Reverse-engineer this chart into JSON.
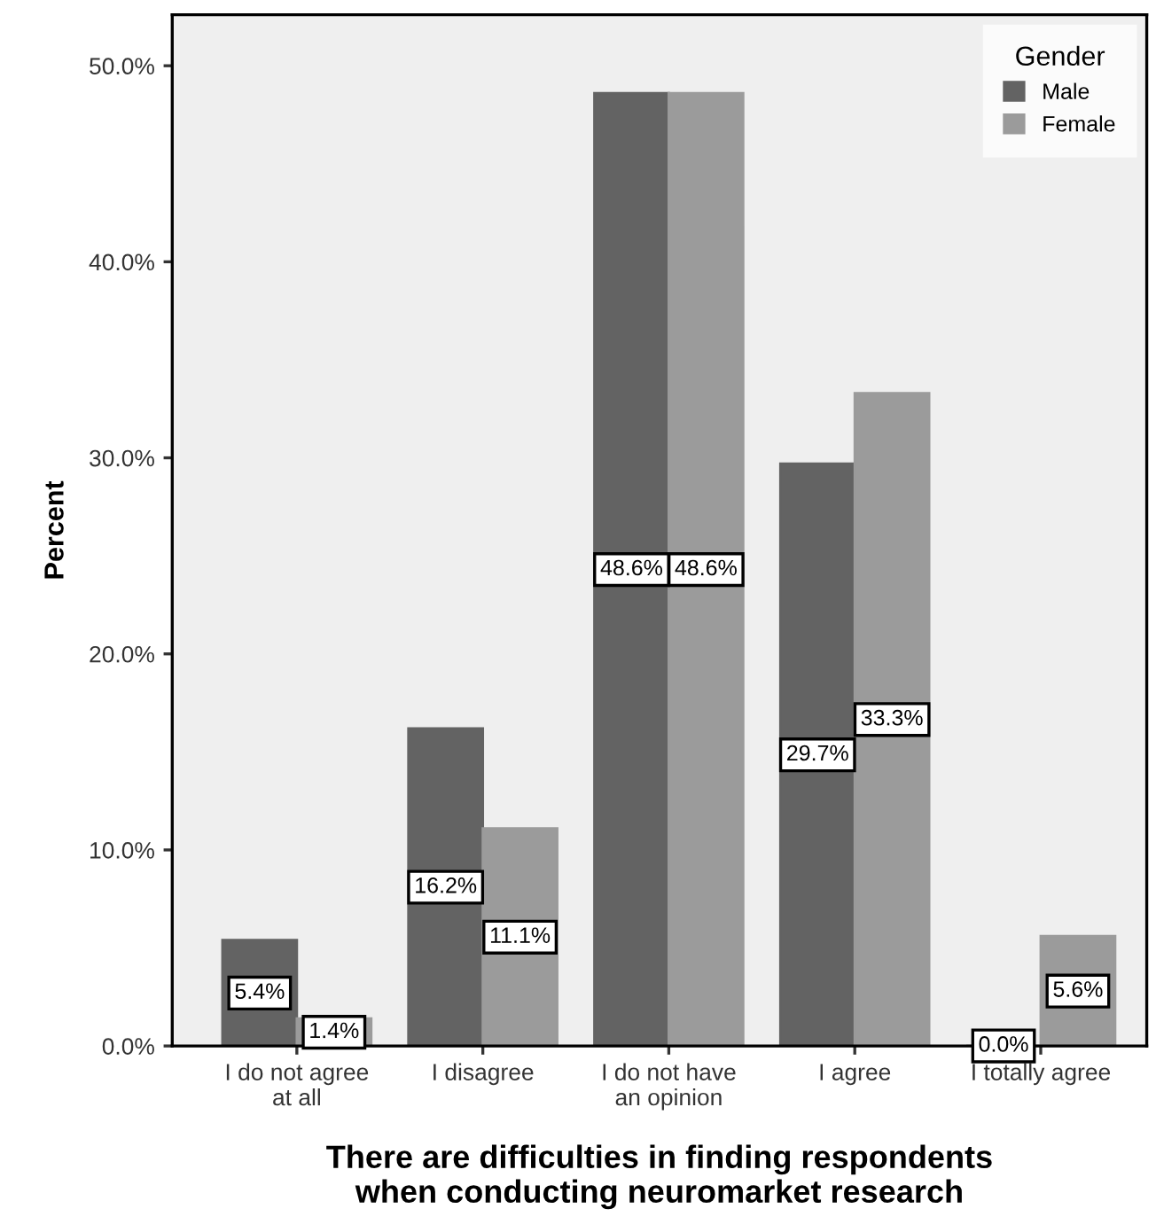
{
  "chart_data": {
    "type": "bar",
    "xlabel": "There are difficulties in finding respondents\nwhen conducting neuromarket research",
    "ylabel": "Percent",
    "legend_title": "Gender",
    "categories": [
      "I do not agree\nat all",
      "I disagree",
      "I do not have\nan opinion",
      "I agree",
      "I totally agree"
    ],
    "series": [
      {
        "name": "Male",
        "color": "#636363",
        "values": [
          5.4,
          16.2,
          48.6,
          29.7,
          0.0
        ],
        "value_labels": [
          "5.4%",
          "16.2%",
          "48.6%",
          "29.7%",
          "0.0%"
        ]
      },
      {
        "name": "Female",
        "color": "#9b9b9b",
        "values": [
          1.4,
          11.1,
          48.6,
          33.3,
          5.6
        ],
        "value_labels": [
          "1.4%",
          "11.1%",
          "48.6%",
          "33.3%",
          "5.6%"
        ]
      }
    ],
    "ylim": [
      0,
      52.6
    ],
    "yticks": [
      {
        "value": 0,
        "label": "0.0%"
      },
      {
        "value": 10,
        "label": "10.0%"
      },
      {
        "value": 20,
        "label": "20.0%"
      },
      {
        "value": 30,
        "label": "30.0%"
      },
      {
        "value": 40,
        "label": "40.0%"
      },
      {
        "value": 50,
        "label": "50.0%"
      }
    ],
    "grid": false,
    "legend": "top right"
  }
}
